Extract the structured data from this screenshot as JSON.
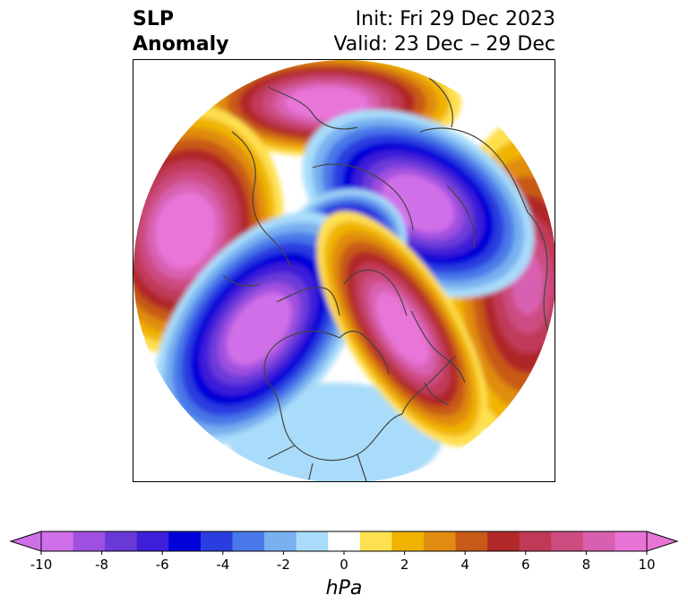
{
  "title": {
    "left_line1": "SLP",
    "left_line2": "Anomaly",
    "init": "Init: Fri 29 Dec 2023",
    "valid": "Valid: 23 Dec – 29 Dec"
  },
  "colorbar": {
    "units": "hPa",
    "tick_labels": [
      "-10",
      "-8",
      "-6",
      "-4",
      "-2",
      "0",
      "2",
      "4",
      "6",
      "8",
      "10"
    ],
    "levels": [
      -10,
      -9,
      -8,
      -7,
      -6,
      -5,
      -4,
      -3,
      -2,
      -1,
      1,
      2,
      3,
      4,
      5,
      6,
      7,
      8,
      9,
      10
    ],
    "colors": [
      "#d070e8",
      "#a050e0",
      "#6a3ad8",
      "#3e1ed8",
      "#0000d8",
      "#2a3ee0",
      "#4a78e8",
      "#78b0f0",
      "#a8dcfa",
      "#ffffff",
      "#ffe050",
      "#f0b400",
      "#e08c10",
      "#c85a18",
      "#b02828",
      "#c03a58",
      "#cc4c80",
      "#d860b0",
      "#e874d8"
    ],
    "under_color": "#d070e8",
    "over_color": "#e874d8"
  },
  "anomalies": [
    {
      "name": "positive-anomaly-north-pacific",
      "value": 10
    },
    {
      "name": "negative-anomaly-gulf-of-alaska",
      "value": -10
    },
    {
      "name": "positive-anomaly-greenland",
      "value": 10
    },
    {
      "name": "negative-anomaly-arctic-siberia",
      "value": -10
    },
    {
      "name": "positive-anomaly-north-atlantic-europe",
      "value": 8
    },
    {
      "name": "positive-anomaly-scandinavia",
      "value": 10
    },
    {
      "name": "negative-anomaly-arctic-ocean",
      "value": -10
    },
    {
      "name": "negative-anomaly-united-states",
      "value": -1
    }
  ]
}
